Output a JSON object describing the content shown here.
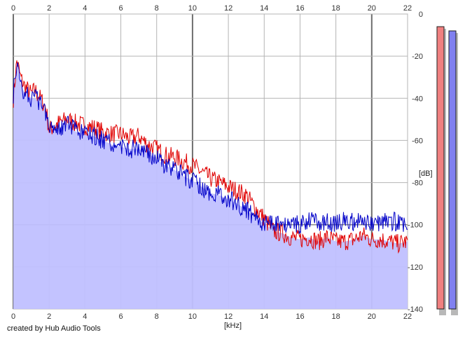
{
  "app": {
    "credit": "created by Hub Audio Tools"
  },
  "chart_data": {
    "type": "area",
    "xlabel": "[kHz]",
    "ylabel": "[dB]",
    "xlim": [
      0,
      22
    ],
    "ylim": [
      -140,
      0
    ],
    "x_ticks": [
      0,
      2,
      4,
      6,
      8,
      10,
      12,
      14,
      16,
      18,
      20,
      22
    ],
    "y_ticks": [
      0,
      -20,
      -40,
      -60,
      -80,
      -100,
      -120,
      -140
    ],
    "grid": true,
    "series": [
      {
        "color": "#e00000",
        "x": [
          0,
          0.2,
          0.4,
          0.6,
          0.8,
          1.0,
          1.2,
          1.5,
          1.8,
          2.0,
          2.5,
          3.0,
          3.5,
          4.0,
          4.5,
          5.0,
          5.5,
          6.0,
          6.5,
          7.0,
          7.5,
          8.0,
          8.5,
          9.0,
          9.5,
          10.0,
          10.5,
          11.0,
          11.5,
          12.0,
          12.5,
          13.0,
          13.5,
          14.0,
          14.5,
          15.0,
          15.5,
          16.0,
          16.5,
          17.0,
          17.5,
          18.0,
          18.5,
          19.0,
          19.5,
          20.0,
          20.5,
          21.0,
          21.5,
          22.0
        ],
        "values": [
          -40,
          -22,
          -30,
          -34,
          -36,
          -38,
          -36,
          -40,
          -44,
          -55,
          -52,
          -50,
          -52,
          -53,
          -54,
          -56,
          -57,
          -57,
          -59,
          -58,
          -62,
          -64,
          -67,
          -68,
          -70,
          -72,
          -75,
          -78,
          -80,
          -82,
          -84,
          -86,
          -92,
          -97,
          -103,
          -104,
          -106,
          -107,
          -106,
          -108,
          -106,
          -108,
          -108,
          -107,
          -105,
          -107,
          -107,
          -108,
          -109,
          -108
        ]
      },
      {
        "color": "#0000c8",
        "x": [
          0,
          0.2,
          0.4,
          0.6,
          0.8,
          1.0,
          1.2,
          1.5,
          1.8,
          2.0,
          2.5,
          3.0,
          3.5,
          4.0,
          4.5,
          5.0,
          5.5,
          6.0,
          6.5,
          7.0,
          7.5,
          8.0,
          8.5,
          9.0,
          9.5,
          10.0,
          10.5,
          11.0,
          11.5,
          12.0,
          12.5,
          13.0,
          13.5,
          14.0,
          14.5,
          15.0,
          15.5,
          16.0,
          16.5,
          17.0,
          17.5,
          18.0,
          18.5,
          19.0,
          19.5,
          20.0,
          20.5,
          21.0,
          21.5,
          22.0
        ],
        "values": [
          -38,
          -24,
          -33,
          -37,
          -38,
          -40,
          -40,
          -42,
          -46,
          -52,
          -54,
          -52,
          -56,
          -57,
          -58,
          -60,
          -62,
          -63,
          -64,
          -64,
          -66,
          -69,
          -72,
          -74,
          -77,
          -79,
          -82,
          -85,
          -86,
          -88,
          -90,
          -93,
          -97,
          -99,
          -99,
          -100,
          -99,
          -100,
          -98,
          -99,
          -99,
          -99,
          -98,
          -99,
          -99,
          -99,
          -99,
          -98,
          -99,
          -99
        ]
      }
    ],
    "filled_area_color": "#c0c0ff",
    "level_meters": [
      {
        "color": "#f08080",
        "value": -6
      },
      {
        "color": "#8080f0",
        "value": -8
      }
    ]
  }
}
